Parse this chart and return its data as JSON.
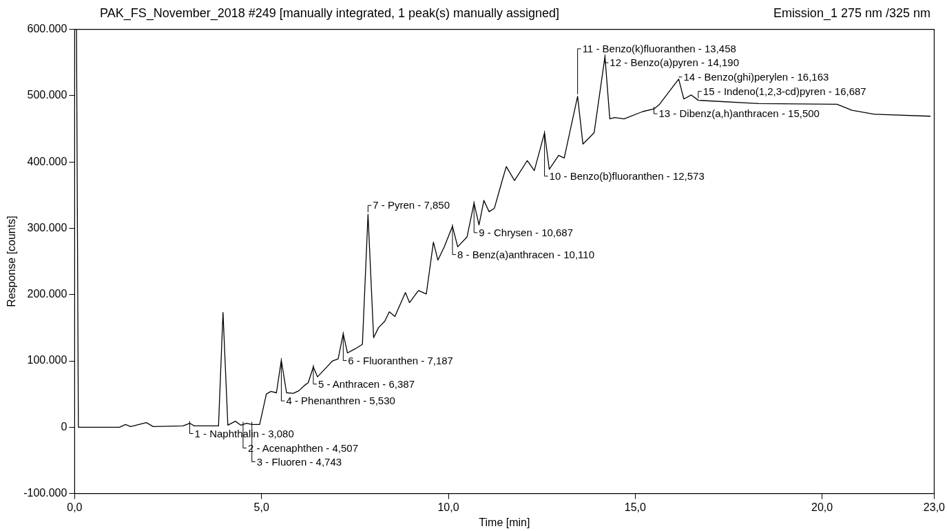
{
  "chart_data": {
    "type": "line",
    "title": "PAK_FS_November_2018 #249 [manually integrated, 1 peak(s) manually assigned]",
    "subtitle": "Emission_1 275 nm /325 nm",
    "xlabel": "Time [min]",
    "ylabel": "Response [counts]",
    "xlim": [
      0,
      23
    ],
    "xticks": [
      {
        "value": 0,
        "label": "0,0"
      },
      {
        "value": 5,
        "label": "5,0"
      },
      {
        "value": 10,
        "label": "10,0"
      },
      {
        "value": 15,
        "label": "15,0"
      },
      {
        "value": 20,
        "label": "20,0"
      },
      {
        "value": 23,
        "label": "23,0"
      }
    ],
    "ylim": [
      -100000,
      600000
    ],
    "yticks": [
      {
        "value": -100000,
        "label": "-100.000"
      },
      {
        "value": 0,
        "label": "0"
      },
      {
        "value": 100000,
        "label": "100.000"
      },
      {
        "value": 200000,
        "label": "200.000"
      },
      {
        "value": 300000,
        "label": "300.000"
      },
      {
        "value": 400000,
        "label": "400.000"
      },
      {
        "value": 500000,
        "label": "500.000"
      },
      {
        "value": 600000,
        "label": "600.000"
      }
    ],
    "grid": false,
    "legend": false,
    "marker": "none",
    "line_style": "solid",
    "series": [
      {
        "color": "#000000",
        "x": [
          0.05,
          0.1,
          1.2,
          1.36,
          1.5,
          1.92,
          2.1,
          2.9,
          3.08,
          3.2,
          3.85,
          3.97,
          4.1,
          4.3,
          4.45,
          4.6,
          4.75,
          4.95,
          5.13,
          5.25,
          5.4,
          5.53,
          5.67,
          5.85,
          6.0,
          6.15,
          6.25,
          6.387,
          6.5,
          6.7,
          6.9,
          7.05,
          7.187,
          7.3,
          7.5,
          7.7,
          7.85,
          8.0,
          8.13,
          8.3,
          8.42,
          8.57,
          8.85,
          8.96,
          9.2,
          9.41,
          9.6,
          9.72,
          9.89,
          10.11,
          10.25,
          10.5,
          10.687,
          10.82,
          10.95,
          11.09,
          11.23,
          11.45,
          11.55,
          11.77,
          12.11,
          12.3,
          12.573,
          12.7,
          12.95,
          13.1,
          13.458,
          13.6,
          13.9,
          14.19,
          14.32,
          14.45,
          14.7,
          15.2,
          15.5,
          15.65,
          16.163,
          16.3,
          16.5,
          16.687,
          18.3,
          20.4,
          20.8,
          21.4,
          22.9
        ],
        "values": [
          600000,
          0,
          0,
          4000,
          1000,
          7000,
          1000,
          2000,
          6000,
          2000,
          2000,
          173000,
          3000,
          9000,
          3000,
          6000,
          4000,
          4000,
          50000,
          54000,
          52000,
          101000,
          52000,
          51000,
          55000,
          63000,
          67000,
          91000,
          76000,
          88000,
          100000,
          103000,
          141000,
          112000,
          118000,
          125000,
          321000,
          135000,
          150000,
          160000,
          174000,
          167000,
          203000,
          188000,
          206000,
          201000,
          279000,
          252000,
          272000,
          303000,
          272000,
          287000,
          338000,
          305000,
          342000,
          325000,
          330000,
          374000,
          393000,
          372000,
          402000,
          387000,
          444000,
          389000,
          410000,
          406000,
          499000,
          427000,
          444000,
          559000,
          465000,
          467000,
          465000,
          476000,
          480000,
          487000,
          525000,
          495000,
          501000,
          493000,
          488000,
          487000,
          478000,
          472000,
          469000
        ]
      }
    ],
    "annotations": [
      {
        "text": "1 - Naphthalin - 3,080",
        "x": 3.08,
        "y": 6000
      },
      {
        "text": "2 - Acenaphthen - 4,507",
        "x": 4.507,
        "y": 5000
      },
      {
        "text": "3 - Fluoren - 4,743",
        "x": 4.743,
        "y": 5000
      },
      {
        "text": "4 - Phenanthren - 5,530",
        "x": 5.53,
        "y": 101000
      },
      {
        "text": "5 - Anthracen - 6,387",
        "x": 6.387,
        "y": 91000
      },
      {
        "text": "6 - Fluoranthen - 7,187",
        "x": 7.187,
        "y": 141000
      },
      {
        "text": "7 - Pyren - 7,850",
        "x": 7.85,
        "y": 321000
      },
      {
        "text": "8 - Benz(a)anthracen - 10,110",
        "x": 10.11,
        "y": 303000
      },
      {
        "text": "9 - Chrysen - 10,687",
        "x": 10.687,
        "y": 338000
      },
      {
        "text": "10 - Benzo(b)fluoranthen - 12,573",
        "x": 12.573,
        "y": 444000
      },
      {
        "text": "11 - Benzo(k)fluoranthen - 13,458",
        "x": 13.458,
        "y": 499000
      },
      {
        "text": "12 - Benzo(a)pyren - 14,190",
        "x": 14.19,
        "y": 559000
      },
      {
        "text": "13 - Dibenz(a,h)anthracen - 15,500",
        "x": 15.5,
        "y": 480000
      },
      {
        "text": "14 - Benzo(ghi)perylen - 16,163",
        "x": 16.163,
        "y": 525000
      },
      {
        "text": "15 - Indeno(1,2,3-cd)pyren - 16,687",
        "x": 16.687,
        "y": 493000
      }
    ]
  }
}
